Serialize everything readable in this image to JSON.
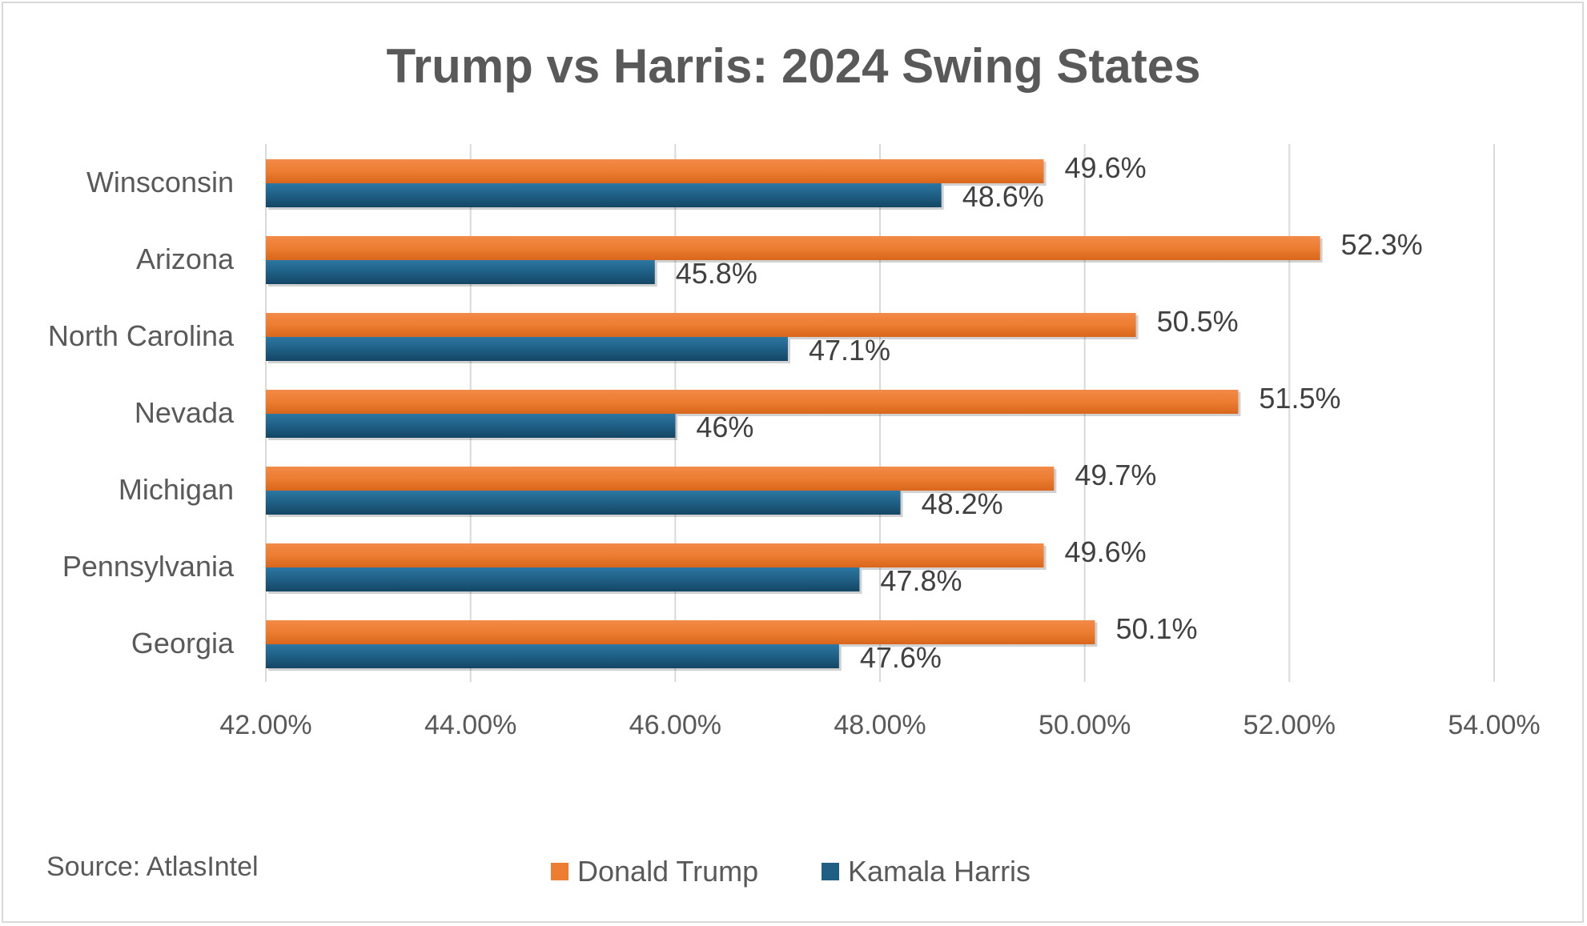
{
  "chart_data": {
    "type": "bar",
    "orientation": "horizontal",
    "title": "Trump vs Harris: 2024 Swing States",
    "categories": [
      "Winsconsin",
      "Arizona",
      "North Carolina",
      "Nevada",
      "Michigan",
      "Pennsylvania",
      "Georgia"
    ],
    "series": [
      {
        "name": "Donald Trump",
        "color": "#ed7d31",
        "values": [
          49.6,
          52.3,
          50.5,
          51.5,
          49.7,
          49.6,
          50.1
        ],
        "labels": [
          "49.6%",
          "52.3%",
          "50.5%",
          "51.5%",
          "49.7%",
          "49.6%",
          "50.1%"
        ]
      },
      {
        "name": "Kamala Harris",
        "color": "#1f5f85",
        "values": [
          48.6,
          45.8,
          47.1,
          46.0,
          48.2,
          47.8,
          47.6
        ],
        "labels": [
          "48.6%",
          "45.8%",
          "47.1%",
          "46%",
          "48.2%",
          "47.8%",
          "47.6%"
        ]
      }
    ],
    "xlim": [
      42,
      54
    ],
    "xticks": [
      42,
      44,
      46,
      48,
      50,
      52,
      54
    ],
    "xtick_labels": [
      "42.00%",
      "44.00%",
      "46.00%",
      "48.00%",
      "50.00%",
      "52.00%",
      "54.00%"
    ],
    "grid": true,
    "legend_position": "bottom",
    "source_note": "Source: AtlasIntel"
  }
}
